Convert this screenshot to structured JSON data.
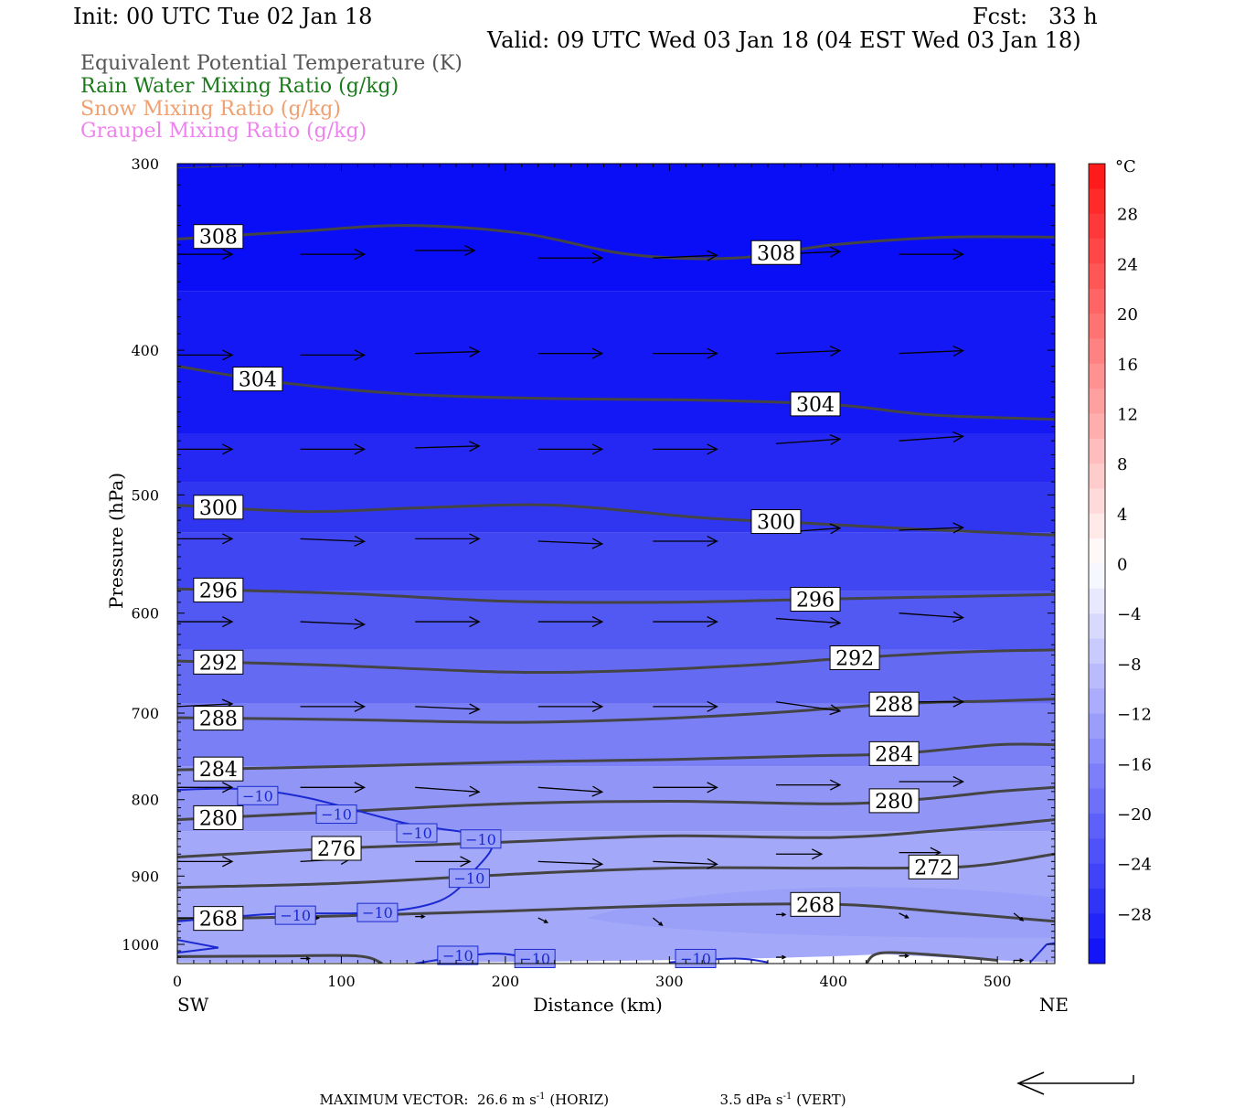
{
  "header": {
    "init": "Init: 00 UTC Tue 02 Jan 18",
    "fcst": "Fcst:   33 h",
    "valid": "Valid: 09 UTC Wed 03 Jan 18 (04 EST Wed 03 Jan 18)"
  },
  "fields": [
    {
      "label": "Equivalent Potential Temperature (K)",
      "color": "#555555"
    },
    {
      "label": "Rain Water Mixing Ratio (g/kg)",
      "color": "#1a7a1a"
    },
    {
      "label": "Snow Mixing Ratio (g/kg)",
      "color": "#f0a070"
    },
    {
      "label": "Graupel Mixing Ratio (g/kg)",
      "color": "#ee82ee"
    }
  ],
  "footer": {
    "max_vector_label": "MAXIMUM VECTOR:",
    "horiz_value": "26.6 m s",
    "horiz_unit": "(HORIZ)",
    "vert_value": "3.5 dPa s",
    "vert_unit": "(VERT)",
    "exponent": "-1"
  },
  "chart_data": {
    "type": "cross-section",
    "xlabel": "Distance (km)",
    "ylabel": "Pressure (hPa)",
    "xlim": [
      0,
      535
    ],
    "ylim": [
      300,
      1030
    ],
    "y_scale": "log",
    "x_ticks": [
      0,
      100,
      200,
      300,
      400,
      500
    ],
    "y_ticks": [
      300,
      400,
      500,
      600,
      700,
      800,
      900,
      1000
    ],
    "left_end_label": "SW",
    "right_end_label": "NE",
    "colorbar": {
      "unit": "°C",
      "tick_labels": [
        "28",
        "24",
        "20",
        "16",
        "12",
        "8",
        "4",
        "0",
        "−4",
        "−8",
        "−12",
        "−16",
        "−20",
        "−24",
        "−28"
      ],
      "tick_values": [
        28,
        24,
        20,
        16,
        12,
        8,
        4,
        0,
        -4,
        -8,
        -12,
        -16,
        -20,
        -24,
        -28
      ],
      "range": [
        -32,
        32
      ],
      "step": 2
    },
    "temperature_bands": [
      {
        "p_top": 300,
        "p_bottom": 365,
        "color": "#0a0ef6"
      },
      {
        "p_top": 365,
        "p_bottom": 455,
        "color": "#1418f5"
      },
      {
        "p_top": 455,
        "p_bottom": 490,
        "color": "#2428f2"
      },
      {
        "p_top": 490,
        "p_bottom": 530,
        "color": "#3036f0"
      },
      {
        "p_top": 530,
        "p_bottom": 580,
        "color": "#4046f1"
      },
      {
        "p_top": 580,
        "p_bottom": 635,
        "color": "#5258f2"
      },
      {
        "p_top": 635,
        "p_bottom": 690,
        "color": "#656af3"
      },
      {
        "p_top": 690,
        "p_bottom": 760,
        "color": "#7a7ff5"
      },
      {
        "p_top": 760,
        "p_bottom": 840,
        "color": "#9195f6"
      },
      {
        "p_top": 840,
        "p_bottom": 1030,
        "color": "#a4a8f8"
      }
    ],
    "theta_e_contours": [
      {
        "value": 308,
        "points": [
          [
            0,
            337
          ],
          [
            75,
            333
          ],
          [
            140,
            330
          ],
          [
            210,
            334
          ],
          [
            275,
            345
          ],
          [
            340,
            347
          ],
          [
            400,
            340
          ],
          [
            470,
            336
          ],
          [
            535,
            336
          ]
        ],
        "label_at": [
          [
            25,
            "308"
          ],
          [
            365,
            "308"
          ]
        ]
      },
      {
        "value": 304,
        "points": [
          [
            0,
            410
          ],
          [
            60,
            420
          ],
          [
            140,
            428
          ],
          [
            230,
            431
          ],
          [
            320,
            432
          ],
          [
            400,
            435
          ],
          [
            460,
            442
          ],
          [
            535,
            445
          ]
        ],
        "label_at": [
          [
            49,
            "304"
          ],
          [
            389,
            "304"
          ]
        ]
      },
      {
        "value": 300,
        "points": [
          [
            0,
            508
          ],
          [
            80,
            513
          ],
          [
            150,
            510
          ],
          [
            230,
            508
          ],
          [
            320,
            518
          ],
          [
            380,
            522
          ],
          [
            450,
            527
          ],
          [
            535,
            532
          ]
        ],
        "label_at": [
          [
            25,
            "300"
          ],
          [
            365,
            "300"
          ]
        ]
      },
      {
        "value": 296,
        "points": [
          [
            0,
            578
          ],
          [
            100,
            582
          ],
          [
            200,
            589
          ],
          [
            300,
            590
          ],
          [
            400,
            587
          ],
          [
            470,
            585
          ],
          [
            535,
            583
          ]
        ],
        "label_at": [
          [
            25,
            "296"
          ],
          [
            389,
            "296"
          ]
        ]
      },
      {
        "value": 292,
        "points": [
          [
            0,
            646
          ],
          [
            90,
            650
          ],
          [
            200,
            657
          ],
          [
            270,
            656
          ],
          [
            350,
            650
          ],
          [
            410,
            643
          ],
          [
            480,
            637
          ],
          [
            535,
            635
          ]
        ],
        "label_at": [
          [
            25,
            "292"
          ],
          [
            413,
            "292"
          ]
        ]
      },
      {
        "value": 288,
        "points": [
          [
            0,
            705
          ],
          [
            100,
            707
          ],
          [
            200,
            710
          ],
          [
            280,
            707
          ],
          [
            360,
            700
          ],
          [
            440,
            690
          ],
          [
            500,
            687
          ],
          [
            535,
            685
          ]
        ],
        "label_at": [
          [
            25,
            "288"
          ],
          [
            437,
            "288"
          ]
        ]
      },
      {
        "value": 284,
        "points": [
          [
            0,
            764
          ],
          [
            100,
            760
          ],
          [
            200,
            755
          ],
          [
            300,
            752
          ],
          [
            380,
            748
          ],
          [
            440,
            745
          ],
          [
            500,
            735
          ],
          [
            535,
            735
          ]
        ],
        "label_at": [
          [
            25,
            "284"
          ],
          [
            437,
            "284"
          ]
        ]
      },
      {
        "value": 280,
        "points": [
          [
            0,
            825
          ],
          [
            100,
            815
          ],
          [
            200,
            805
          ],
          [
            300,
            802
          ],
          [
            400,
            805
          ],
          [
            450,
            800
          ],
          [
            500,
            790
          ],
          [
            535,
            785
          ]
        ],
        "label_at": [
          [
            25,
            "280"
          ],
          [
            437,
            "280"
          ]
        ]
      },
      {
        "value": 276,
        "points": [
          [
            0,
            874
          ],
          [
            100,
            862
          ],
          [
            200,
            854
          ],
          [
            300,
            846
          ],
          [
            400,
            848
          ],
          [
            470,
            838
          ],
          [
            535,
            825
          ]
        ],
        "label_at": [
          [
            97,
            "276"
          ]
        ]
      },
      {
        "value": 272,
        "points": [
          [
            0,
            916
          ],
          [
            100,
            910
          ],
          [
            200,
            898
          ],
          [
            300,
            889
          ],
          [
            400,
            889
          ],
          [
            480,
            887
          ],
          [
            535,
            870
          ]
        ],
        "label_at": [
          [
            461,
            "272"
          ]
        ]
      },
      {
        "value": 268,
        "points": [
          [
            0,
            962
          ],
          [
            100,
            957
          ],
          [
            200,
            950
          ],
          [
            300,
            942
          ],
          [
            400,
            940
          ],
          [
            470,
            952
          ],
          [
            535,
            965
          ]
        ],
        "label_at": [
          [
            25,
            "268"
          ],
          [
            389,
            "268"
          ]
        ]
      },
      {
        "value": 264,
        "points": [
          [
            0,
            1019
          ],
          [
            60,
            1018
          ],
          [
            110,
            1018
          ],
          [
            125,
            1030
          ]
        ],
        "label_at": []
      },
      {
        "value": 264,
        "points": [
          [
            420,
            1030
          ],
          [
            430,
            1013
          ],
          [
            470,
            1018
          ],
          [
            500,
            1025
          ]
        ],
        "label_at": []
      }
    ],
    "temperature_isotherm_m10": {
      "value": -10,
      "points": [
        [
          0,
          788
        ],
        [
          40,
          787
        ],
        [
          80,
          798
        ],
        [
          140,
          830
        ],
        [
          190,
          850
        ],
        [
          180,
          895
        ],
        [
          160,
          935
        ],
        [
          120,
          952
        ],
        [
          60,
          954
        ],
        [
          0,
          965
        ]
      ],
      "bottom_segment": [
        [
          145,
          1030
        ],
        [
          175,
          1018
        ],
        [
          200,
          1015
        ],
        [
          230,
          1030
        ]
      ],
      "bottom_segment2": [
        [
          300,
          1028
        ],
        [
          340,
          1022
        ],
        [
          360,
          1028
        ]
      ],
      "labels": [
        [
          49,
          795,
          "−10"
        ],
        [
          97,
          818,
          "−10"
        ],
        [
          146,
          842,
          "−10"
        ],
        [
          185,
          850,
          "−10"
        ],
        [
          178,
          903,
          "−10"
        ],
        [
          72,
          956,
          "−10"
        ],
        [
          122,
          952,
          "−10"
        ],
        [
          171,
          1017,
          "−10"
        ],
        [
          218,
          1022,
          "−10"
        ],
        [
          316,
          1022,
          "−10"
        ]
      ]
    },
    "wind_vectors": [
      {
        "x": 0,
        "p": 345,
        "dx": 60,
        "dp": 0
      },
      {
        "x": 75,
        "p": 345,
        "dx": 70,
        "dp": 0
      },
      {
        "x": 145,
        "p": 343,
        "dx": 65,
        "dp": 0
      },
      {
        "x": 220,
        "p": 347,
        "dx": 70,
        "dp": 0
      },
      {
        "x": 290,
        "p": 347,
        "dx": 70,
        "dp": -3
      },
      {
        "x": 365,
        "p": 345,
        "dx": 70,
        "dp": -3
      },
      {
        "x": 440,
        "p": 345,
        "dx": 70,
        "dp": 0
      },
      {
        "x": 0,
        "p": 403,
        "dx": 60,
        "dp": 0
      },
      {
        "x": 75,
        "p": 403,
        "dx": 70,
        "dp": 0
      },
      {
        "x": 145,
        "p": 402,
        "dx": 70,
        "dp": -2
      },
      {
        "x": 220,
        "p": 402,
        "dx": 70,
        "dp": 0
      },
      {
        "x": 290,
        "p": 402,
        "dx": 70,
        "dp": 0
      },
      {
        "x": 365,
        "p": 402,
        "dx": 70,
        "dp": -3
      },
      {
        "x": 440,
        "p": 402,
        "dx": 70,
        "dp": -3
      },
      {
        "x": 0,
        "p": 466,
        "dx": 60,
        "dp": 0
      },
      {
        "x": 75,
        "p": 466,
        "dx": 70,
        "dp": 0
      },
      {
        "x": 145,
        "p": 465,
        "dx": 70,
        "dp": -2
      },
      {
        "x": 220,
        "p": 466,
        "dx": 70,
        "dp": 0
      },
      {
        "x": 290,
        "p": 466,
        "dx": 70,
        "dp": 0
      },
      {
        "x": 365,
        "p": 462,
        "dx": 70,
        "dp": -5
      },
      {
        "x": 440,
        "p": 460,
        "dx": 70,
        "dp": -5
      },
      {
        "x": 0,
        "p": 535,
        "dx": 60,
        "dp": 0
      },
      {
        "x": 75,
        "p": 535,
        "dx": 70,
        "dp": 3
      },
      {
        "x": 145,
        "p": 535,
        "dx": 70,
        "dp": 0
      },
      {
        "x": 220,
        "p": 537,
        "dx": 70,
        "dp": 3
      },
      {
        "x": 290,
        "p": 537,
        "dx": 70,
        "dp": 0
      },
      {
        "x": 365,
        "p": 530,
        "dx": 70,
        "dp": -5
      },
      {
        "x": 440,
        "p": 528,
        "dx": 70,
        "dp": -3
      },
      {
        "x": 0,
        "p": 608,
        "dx": 60,
        "dp": 0
      },
      {
        "x": 75,
        "p": 608,
        "dx": 70,
        "dp": 3
      },
      {
        "x": 145,
        "p": 608,
        "dx": 70,
        "dp": 0
      },
      {
        "x": 220,
        "p": 608,
        "dx": 70,
        "dp": 0
      },
      {
        "x": 290,
        "p": 608,
        "dx": 70,
        "dp": 0
      },
      {
        "x": 365,
        "p": 605,
        "dx": 70,
        "dp": 5
      },
      {
        "x": 440,
        "p": 600,
        "dx": 70,
        "dp": 5
      },
      {
        "x": 0,
        "p": 693,
        "dx": 60,
        "dp": -3
      },
      {
        "x": 75,
        "p": 693,
        "dx": 70,
        "dp": 0
      },
      {
        "x": 145,
        "p": 693,
        "dx": 70,
        "dp": 3
      },
      {
        "x": 220,
        "p": 693,
        "dx": 70,
        "dp": 0
      },
      {
        "x": 290,
        "p": 693,
        "dx": 70,
        "dp": 0
      },
      {
        "x": 365,
        "p": 688,
        "dx": 70,
        "dp": 10
      },
      {
        "x": 440,
        "p": 688,
        "dx": 70,
        "dp": 0
      },
      {
        "x": 0,
        "p": 785,
        "dx": 60,
        "dp": 0
      },
      {
        "x": 75,
        "p": 785,
        "dx": 70,
        "dp": 0
      },
      {
        "x": 145,
        "p": 785,
        "dx": 70,
        "dp": 5
      },
      {
        "x": 220,
        "p": 785,
        "dx": 70,
        "dp": 5
      },
      {
        "x": 290,
        "p": 785,
        "dx": 70,
        "dp": 0
      },
      {
        "x": 365,
        "p": 782,
        "dx": 70,
        "dp": 0
      },
      {
        "x": 440,
        "p": 778,
        "dx": 70,
        "dp": 0
      },
      {
        "x": 0,
        "p": 880,
        "dx": 60,
        "dp": 0
      },
      {
        "x": 75,
        "p": 880,
        "dx": 55,
        "dp": -3
      },
      {
        "x": 145,
        "p": 880,
        "dx": 60,
        "dp": 0
      },
      {
        "x": 220,
        "p": 880,
        "dx": 70,
        "dp": 3
      },
      {
        "x": 290,
        "p": 880,
        "dx": 70,
        "dp": 3
      },
      {
        "x": 365,
        "p": 870,
        "dx": 50,
        "dp": 0
      },
      {
        "x": 440,
        "p": 868,
        "dx": 45,
        "dp": 0
      },
      {
        "x": 0,
        "p": 960,
        "dx": 30,
        "dp": 0
      },
      {
        "x": 75,
        "p": 960,
        "dx": 20,
        "dp": 0
      },
      {
        "x": 145,
        "p": 958,
        "dx": 10,
        "dp": 0
      },
      {
        "x": 220,
        "p": 960,
        "dx": 10,
        "dp": 5
      },
      {
        "x": 290,
        "p": 960,
        "dx": 10,
        "dp": 8
      },
      {
        "x": 365,
        "p": 955,
        "dx": 10,
        "dp": 0
      },
      {
        "x": 440,
        "p": 953,
        "dx": 10,
        "dp": 5
      },
      {
        "x": 510,
        "p": 953,
        "dx": 10,
        "dp": 8
      },
      {
        "x": 75,
        "p": 1022,
        "dx": 10,
        "dp": 0
      },
      {
        "x": 220,
        "p": 1025,
        "dx": 10,
        "dp": 0
      },
      {
        "x": 365,
        "p": 1020,
        "dx": 10,
        "dp": 0
      },
      {
        "x": 440,
        "p": 1018,
        "dx": 10,
        "dp": 0
      },
      {
        "x": 510,
        "p": 1025,
        "dx": 10,
        "dp": 0
      }
    ]
  }
}
